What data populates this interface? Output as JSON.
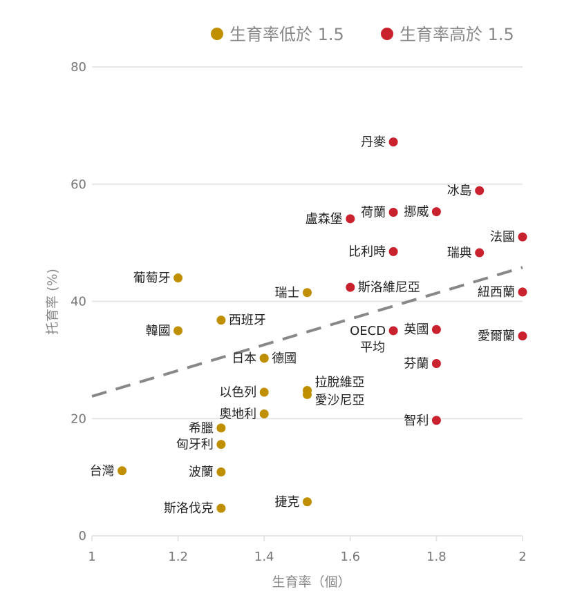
{
  "chart_data": {
    "type": "scatter",
    "title": "",
    "xlabel": "生育率（個）",
    "ylabel": "托育率 (%)",
    "xlim": [
      1,
      2
    ],
    "ylim": [
      0,
      80
    ],
    "x_ticks": [
      1,
      1.2,
      1.4,
      1.6,
      1.8,
      2
    ],
    "x_tick_labels": [
      "1",
      "1.2",
      "1.4",
      "1.6",
      "1.8",
      "2"
    ],
    "y_ticks": [
      0,
      20,
      40,
      60,
      80
    ],
    "y_tick_labels": [
      "0",
      "20",
      "40",
      "60",
      "80"
    ],
    "grid": "horizontal",
    "legend_placement": "top-right",
    "trend_line": {
      "style": "dashed",
      "color": "#888888",
      "start": {
        "x": 1,
        "y": 23.8
      },
      "end": {
        "x": 2,
        "y": 45.8
      }
    },
    "series": [
      {
        "name": "生育率低於 1.5",
        "color": "#bf8f00",
        "points": [
          {
            "label": "葡萄牙",
            "x": 1.2,
            "y": 44
          },
          {
            "label": "韓國",
            "x": 1.2,
            "y": 35
          },
          {
            "label": "西班牙",
            "x": 1.3,
            "y": 36.8
          },
          {
            "label": "瑞士",
            "x": 1.5,
            "y": 41.5
          },
          {
            "label": "日本",
            "x": 1.4,
            "y": 30.3
          },
          {
            "label": "德國",
            "x": 1.4,
            "y": 30.3
          },
          {
            "label": "以色列",
            "x": 1.4,
            "y": 24.5
          },
          {
            "label": "拉脫維亞",
            "x": 1.5,
            "y": 24.8
          },
          {
            "label": "愛沙尼亞",
            "x": 1.5,
            "y": 24.1
          },
          {
            "label": "奧地利",
            "x": 1.4,
            "y": 20.8
          },
          {
            "label": "希臘",
            "x": 1.3,
            "y": 18.4
          },
          {
            "label": "匈牙利",
            "x": 1.3,
            "y": 15.6
          },
          {
            "label": "台灣",
            "x": 1.07,
            "y": 11.1
          },
          {
            "label": "波蘭",
            "x": 1.3,
            "y": 10.9
          },
          {
            "label": "捷克",
            "x": 1.5,
            "y": 5.8
          },
          {
            "label": "斯洛伐克",
            "x": 1.3,
            "y": 4.7
          }
        ]
      },
      {
        "name": "生育率高於 1.5",
        "color": "#c9212e",
        "points": [
          {
            "label": "丹麥",
            "x": 1.7,
            "y": 67.2
          },
          {
            "label": "冰島",
            "x": 1.9,
            "y": 58.9
          },
          {
            "label": "荷蘭",
            "x": 1.7,
            "y": 55.2
          },
          {
            "label": "挪威",
            "x": 1.8,
            "y": 55.3
          },
          {
            "label": "盧森堡",
            "x": 1.6,
            "y": 54.1
          },
          {
            "label": "法國",
            "x": 2.0,
            "y": 51
          },
          {
            "label": "比利時",
            "x": 1.7,
            "y": 48.5
          },
          {
            "label": "瑞典",
            "x": 1.9,
            "y": 48.3
          },
          {
            "label": "斯洛維尼亞",
            "x": 1.6,
            "y": 42.4
          },
          {
            "label": "紐西蘭",
            "x": 2.0,
            "y": 41.6
          },
          {
            "label": "OECD 平均",
            "x": 1.7,
            "y": 35
          },
          {
            "label": "英國",
            "x": 1.8,
            "y": 35.2
          },
          {
            "label": "愛爾蘭",
            "x": 2.0,
            "y": 34.1
          },
          {
            "label": "芬蘭",
            "x": 1.8,
            "y": 29.4
          },
          {
            "label": "智利",
            "x": 1.8,
            "y": 19.7
          }
        ]
      }
    ]
  }
}
